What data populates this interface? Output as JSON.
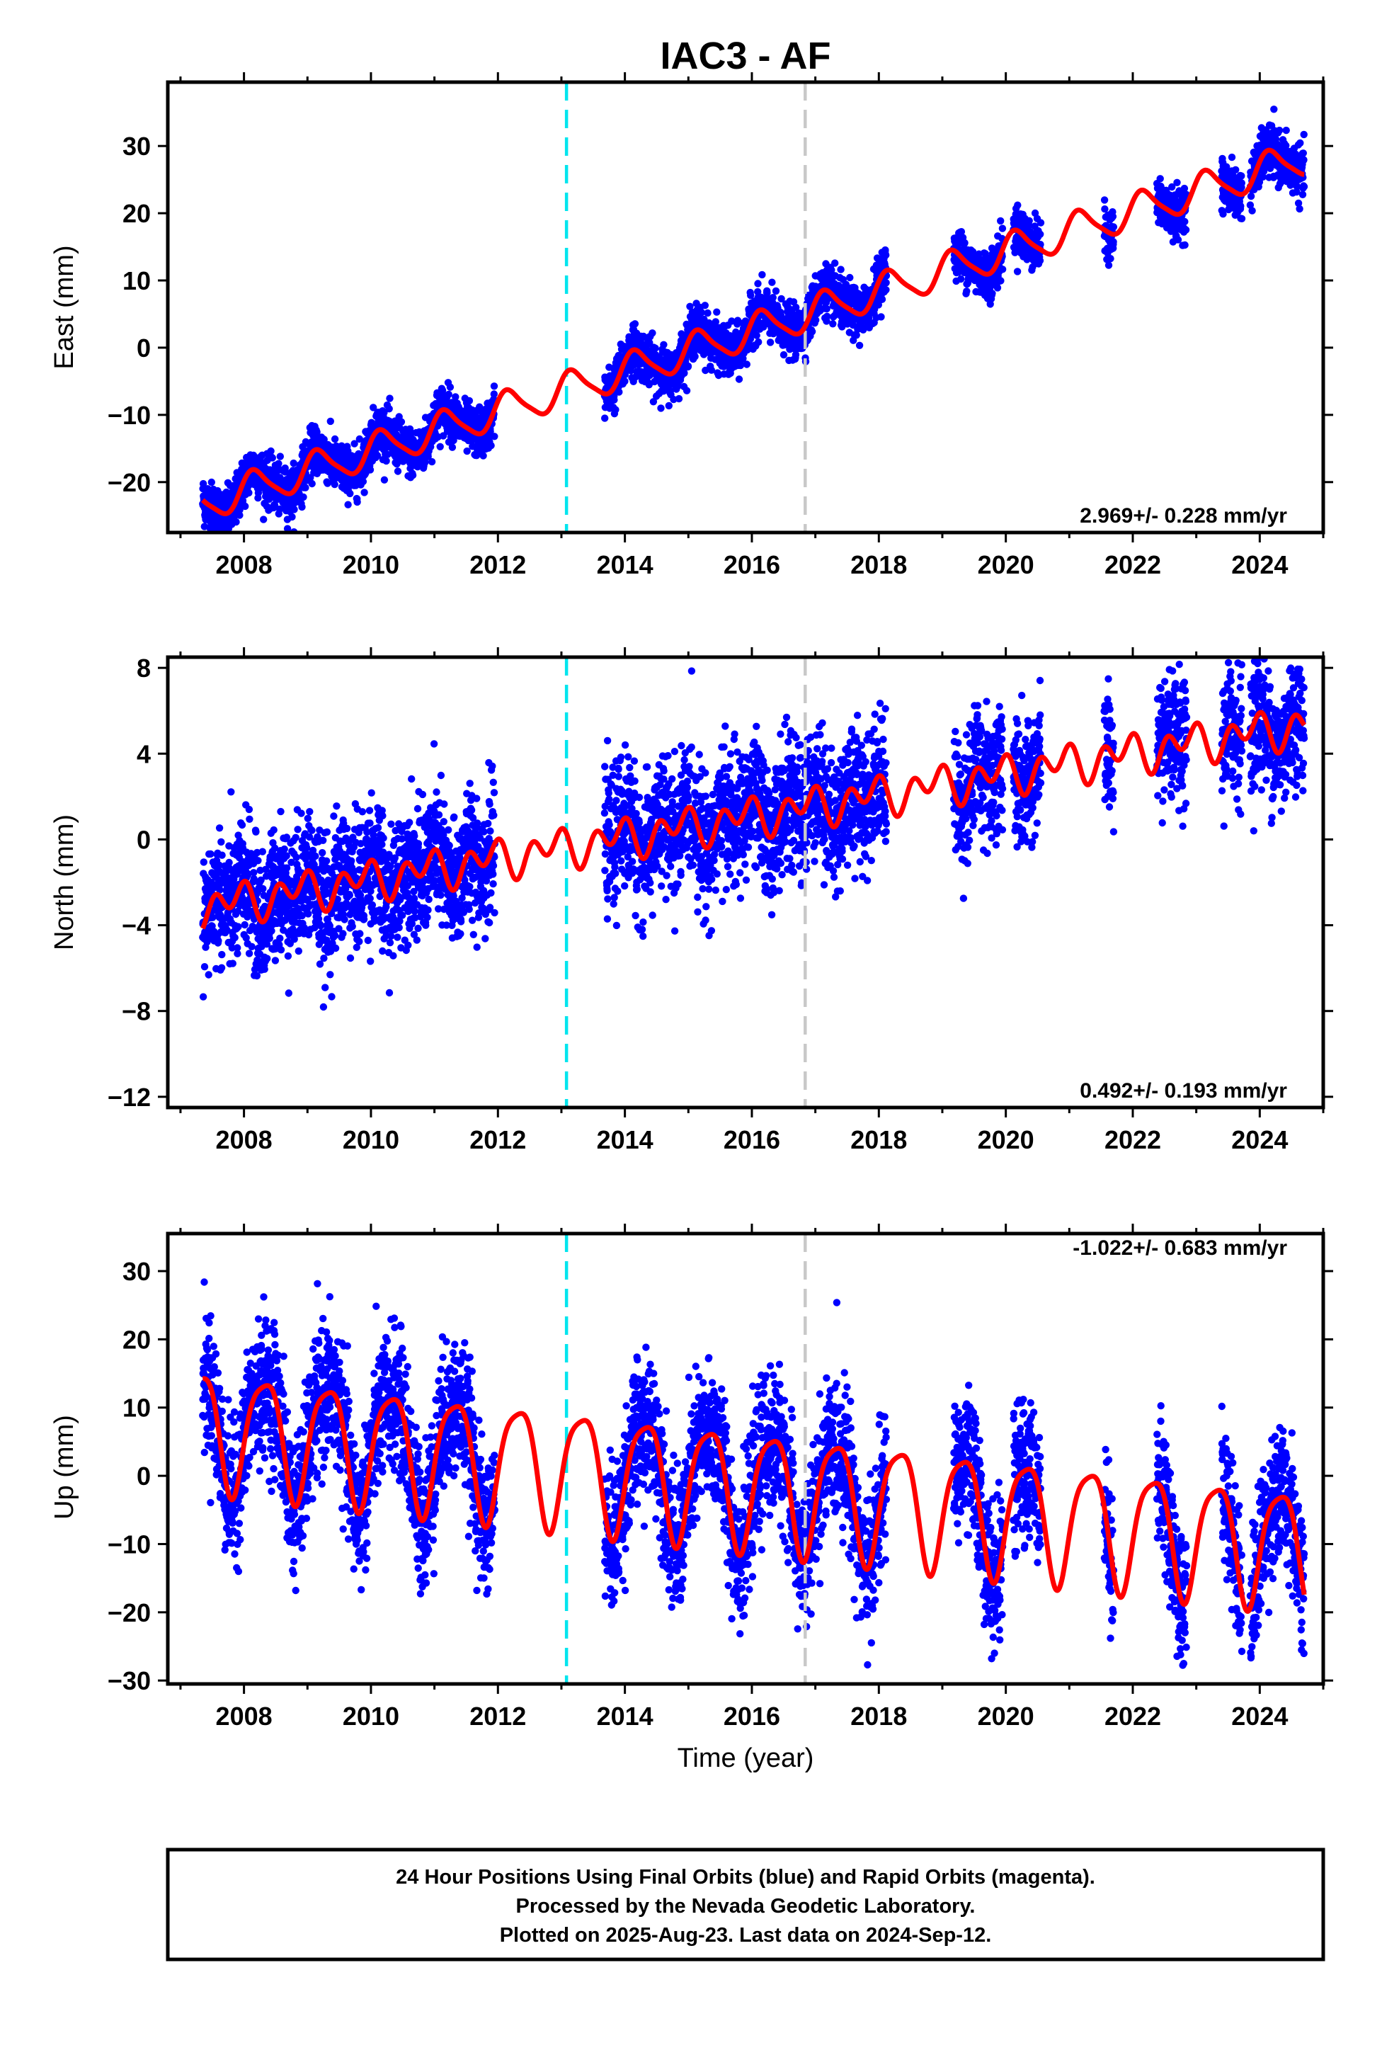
{
  "title": "IAC3 - AF",
  "colors": {
    "final_orbits": "#0000ff",
    "model": "#ff0000",
    "event_dashed_1": "#00e5ee",
    "event_dashed_2": "#c8c8c8"
  },
  "xlabel": "Time (year)",
  "caption": {
    "line1": "24 Hour Positions Using Final Orbits (blue) and Rapid Orbits (magenta).",
    "line2": "Processed by the Nevada Geodetic Laboratory.",
    "line3": "Plotted on 2025-Aug-23. Last data on 2024-Sep-12."
  },
  "chart_data": [
    {
      "type": "scatter",
      "component": "east",
      "ylabel": "East (mm)",
      "rate_text": "2.969+/- 0.228 mm/yr",
      "xlim": [
        2006.8,
        2025.0
      ],
      "ylim": [
        -27.5,
        39.5
      ],
      "xticks": [
        2008,
        2010,
        2012,
        2014,
        2016,
        2018,
        2020,
        2022,
        2024
      ],
      "yticks": [
        -20,
        -10,
        0,
        10,
        20,
        30
      ],
      "ytick_labels": [
        "−20",
        "−10",
        "0",
        "10",
        "20",
        "30"
      ],
      "event_lines": [
        2013.08,
        2016.84
      ],
      "model": {
        "t0": 2013.0,
        "intercept": -6.5,
        "slope": 2.969,
        "annual_cos": 1.2,
        "annual_sin": 2.2,
        "semiannual_cos": 0.3,
        "semiannual_sin": 0.4
      },
      "scatter_sigma": 1.8,
      "series": [
        {
          "name": "Final Orbits",
          "style": "points"
        },
        {
          "name": "Model",
          "style": "line"
        }
      ]
    },
    {
      "type": "scatter",
      "component": "north",
      "ylabel": "North (mm)",
      "rate_text": "0.492+/- 0.193 mm/yr",
      "xlim": [
        2006.8,
        2025.0
      ],
      "ylim": [
        -12.5,
        8.5
      ],
      "xticks": [
        2008,
        2010,
        2012,
        2014,
        2016,
        2018,
        2020,
        2022,
        2024
      ],
      "yticks": [
        -12,
        -8,
        -4,
        0,
        4,
        8
      ],
      "ytick_labels": [
        "−12",
        "−8",
        "−4",
        "0",
        "4",
        "8"
      ],
      "event_lines": [
        2013.08,
        2016.84
      ],
      "model": {
        "t0": 2013.0,
        "intercept": -0.4,
        "slope": 0.492,
        "annual_cos": 0.3,
        "annual_sin": -0.4,
        "semiannual_cos": 0.6,
        "semiannual_sin": 0.3
      },
      "scatter_sigma": 1.5,
      "series": [
        {
          "name": "Final Orbits",
          "style": "points"
        },
        {
          "name": "Model",
          "style": "line"
        }
      ]
    },
    {
      "type": "scatter",
      "component": "up",
      "ylabel": "Up (mm)",
      "rate_text": "-1.022+/- 0.683 mm/yr",
      "xlim": [
        2006.8,
        2025.0
      ],
      "ylim": [
        -30.5,
        35.5
      ],
      "xticks": [
        2008,
        2010,
        2012,
        2014,
        2016,
        2018,
        2020,
        2022,
        2024
      ],
      "yticks": [
        -30,
        -20,
        -10,
        0,
        10,
        20,
        30
      ],
      "ytick_labels": [
        "−30",
        "−20",
        "−10",
        "0",
        "10",
        "20",
        "30"
      ],
      "event_lines": [
        2013.08,
        2016.84
      ],
      "model": {
        "t0": 2013.0,
        "intercept": 1.5,
        "slope": -1.022,
        "annual_cos": -3.5,
        "annual_sin": 7.8,
        "semiannual_cos": 1.5,
        "semiannual_sin": 1.0
      },
      "scatter_sigma": 5.0,
      "series": [
        {
          "name": "Final Orbits",
          "style": "points"
        },
        {
          "name": "Model",
          "style": "line"
        }
      ]
    }
  ],
  "data_coverage": [
    [
      2007.35,
      2011.95
    ],
    [
      2013.68,
      2018.12
    ],
    [
      2019.18,
      2019.95
    ],
    [
      2020.12,
      2020.55
    ],
    [
      2021.55,
      2021.7
    ],
    [
      2022.38,
      2022.85
    ],
    [
      2023.4,
      2023.72
    ],
    [
      2023.85,
      2024.7
    ]
  ]
}
